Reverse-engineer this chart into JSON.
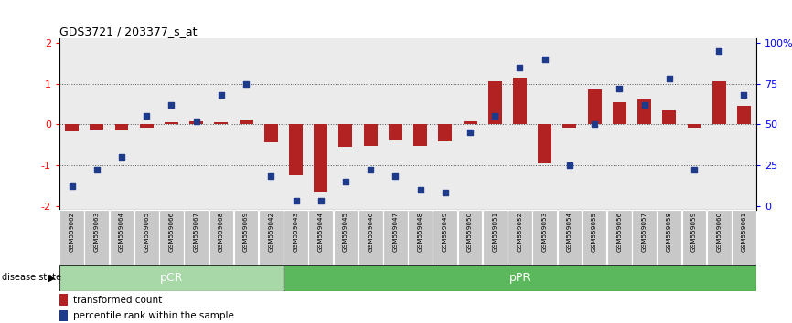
{
  "title": "GDS3721 / 203377_s_at",
  "samples": [
    "GSM559062",
    "GSM559063",
    "GSM559064",
    "GSM559065",
    "GSM559066",
    "GSM559067",
    "GSM559068",
    "GSM559069",
    "GSM559042",
    "GSM559043",
    "GSM559044",
    "GSM559045",
    "GSM559046",
    "GSM559047",
    "GSM559048",
    "GSM559049",
    "GSM559050",
    "GSM559051",
    "GSM559052",
    "GSM559053",
    "GSM559054",
    "GSM559055",
    "GSM559056",
    "GSM559057",
    "GSM559058",
    "GSM559059",
    "GSM559060",
    "GSM559061"
  ],
  "bar_values": [
    -0.18,
    -0.12,
    -0.15,
    -0.08,
    0.05,
    0.08,
    0.05,
    0.12,
    -0.45,
    -1.25,
    -1.65,
    -0.55,
    -0.52,
    -0.38,
    -0.52,
    -0.42,
    0.08,
    1.05,
    1.15,
    -0.95,
    -0.08,
    0.85,
    0.55,
    0.62,
    0.35,
    -0.08,
    1.05,
    0.45
  ],
  "dot_values": [
    12,
    22,
    30,
    55,
    62,
    52,
    68,
    75,
    18,
    3,
    3,
    15,
    22,
    18,
    10,
    8,
    45,
    55,
    85,
    90,
    25,
    50,
    72,
    62,
    78,
    22,
    95,
    68
  ],
  "pCR_count": 9,
  "pPR_count": 19,
  "bar_color": "#b22222",
  "dot_color": "#1e3a8a",
  "ylim": [
    -2.1,
    2.1
  ],
  "yticks_left": [
    -2,
    -1,
    0,
    1,
    2
  ],
  "dotted_lines": [
    -1.0,
    0.0,
    1.0
  ],
  "legend_bar": "transformed count",
  "legend_dot": "percentile rank within the sample",
  "disease_label": "disease state",
  "pCR_label": "pCR",
  "pPR_label": "pPR",
  "pCR_color": "#a8d8a8",
  "pPR_color": "#5cb85c",
  "xlabel_bg": "#c8c8c8",
  "right_ytick_labels": [
    "0",
    "25",
    "50",
    "75",
    "100%"
  ],
  "right_ytick_vals": [
    -2,
    -1,
    0,
    1,
    2
  ]
}
